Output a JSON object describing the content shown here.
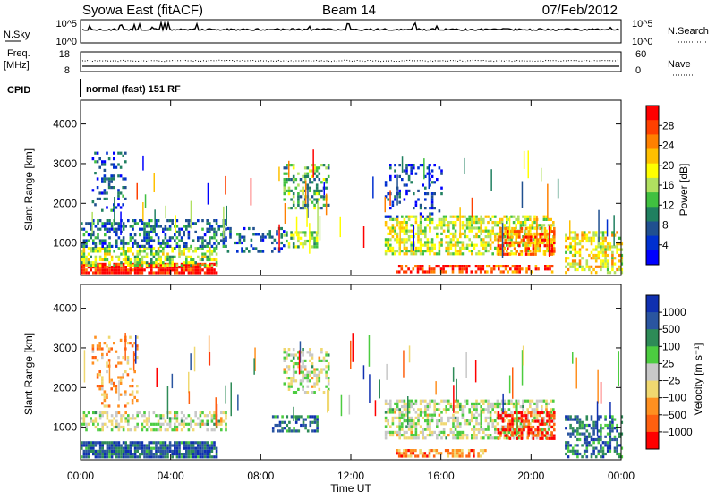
{
  "header": {
    "station": "Syowa East (fitACF)",
    "beam": "Beam 14",
    "date": "07/Feb/2012"
  },
  "top_panels": {
    "nsky_label": "N.Sky",
    "nsky_ticks": [
      "10^5",
      "10^0"
    ],
    "nsearch_label": "N.Search",
    "nsearch_ticks": [
      "10^5",
      "10^0"
    ],
    "freq_label": "Freq.",
    "freq_unit": "[MHz]",
    "freq_ticks": [
      "18",
      "8"
    ],
    "nave_label": "Nave",
    "nave_ticks": [
      "60",
      "0"
    ],
    "cpid_label": "CPID",
    "cpid_text": "normal (fast) 151 RF"
  },
  "chart_data": [
    {
      "type": "heatmap",
      "name": "power",
      "ylabel": "Slant Range [km]",
      "yticks": [
        "1000",
        "2000",
        "3000",
        "4000"
      ],
      "ytick_values": [
        1000,
        2000,
        3000,
        4000
      ],
      "ylim": [
        180,
        4600
      ],
      "xlim": [
        0,
        24
      ],
      "colorbar_label": "Power [dB]",
      "colorbar_ticks": [
        "28",
        "24",
        "20",
        "16",
        "12",
        "8",
        "4"
      ],
      "colorbar_colors": [
        "#ff0000",
        "#ff4000",
        "#ff8000",
        "#ffc000",
        "#ffff00",
        "#b0e060",
        "#40c040",
        "#208060",
        "#205090",
        "#0030d0",
        "#0000ff"
      ],
      "regions": [
        {
          "t0": 0.0,
          "t1": 6.0,
          "r0": 250,
          "r1": 500,
          "level": 0.95,
          "density": 0.85
        },
        {
          "t0": 0.0,
          "t1": 6.0,
          "r0": 400,
          "r1": 900,
          "level": 0.5,
          "density": 0.55
        },
        {
          "t0": 0.0,
          "t1": 6.5,
          "r0": 900,
          "r1": 1600,
          "level": 0.25,
          "density": 0.45
        },
        {
          "t0": 0.5,
          "t1": 2.0,
          "r0": 1800,
          "r1": 3300,
          "level": 0.2,
          "density": 0.25
        },
        {
          "t0": 6.5,
          "t1": 9.0,
          "r0": 800,
          "r1": 1400,
          "level": 0.2,
          "density": 0.3
        },
        {
          "t0": 9.0,
          "t1": 10.5,
          "r0": 900,
          "r1": 1300,
          "level": 0.45,
          "density": 0.6
        },
        {
          "t0": 9.0,
          "t1": 11.0,
          "r0": 1900,
          "r1": 3000,
          "level": 0.4,
          "density": 0.4
        },
        {
          "t0": 14.0,
          "t1": 18.0,
          "r0": 250,
          "r1": 450,
          "level": 0.9,
          "density": 0.6
        },
        {
          "t0": 13.5,
          "t1": 21.0,
          "r0": 700,
          "r1": 1700,
          "level": 0.55,
          "density": 0.55
        },
        {
          "t0": 13.5,
          "t1": 16.0,
          "r0": 1700,
          "r1": 3000,
          "level": 0.15,
          "density": 0.2
        },
        {
          "t0": 18.5,
          "t1": 21.0,
          "r0": 700,
          "r1": 1400,
          "level": 0.8,
          "density": 0.6
        },
        {
          "t0": 18.0,
          "t1": 21.0,
          "r0": 250,
          "r1": 450,
          "level": 0.85,
          "density": 0.55
        },
        {
          "t0": 21.5,
          "t1": 24.0,
          "r0": 250,
          "r1": 1300,
          "level": 0.6,
          "density": 0.5
        }
      ]
    },
    {
      "type": "heatmap",
      "name": "velocity",
      "ylabel": "Slant Range [km]",
      "yticks": [
        "1000",
        "2000",
        "3000",
        "4000"
      ],
      "ytick_values": [
        1000,
        2000,
        3000,
        4000
      ],
      "ylim": [
        180,
        4600
      ],
      "xlim": [
        0,
        24
      ],
      "colorbar_label": "Velocity [m s⁻¹]",
      "colorbar_ticks": [
        "1000",
        "500",
        "100",
        "25",
        "−25",
        "−100",
        "−500",
        "−1000"
      ],
      "colorbar_colors": [
        "#1030b0",
        "#2a55a0",
        "#2e8b57",
        "#4ccc40",
        "#c8c8c8",
        "#f0d870",
        "#ff9020",
        "#ff6010",
        "#ff0000"
      ],
      "regions": [
        {
          "t0": 0.0,
          "t1": 6.0,
          "r0": 250,
          "r1": 650,
          "level": 0.82,
          "density": 0.85
        },
        {
          "t0": 0.0,
          "t1": 6.5,
          "r0": 900,
          "r1": 1400,
          "level": 0.5,
          "density": 0.5
        },
        {
          "t0": 0.5,
          "t1": 2.5,
          "r0": 1500,
          "r1": 3300,
          "level": 0.3,
          "density": 0.2
        },
        {
          "t0": 8.5,
          "t1": 10.5,
          "r0": 900,
          "r1": 1300,
          "level": 0.8,
          "density": 0.55
        },
        {
          "t0": 9.0,
          "t1": 11.0,
          "r0": 1900,
          "r1": 3000,
          "level": 0.5,
          "density": 0.45
        },
        {
          "t0": 14.0,
          "t1": 18.0,
          "r0": 250,
          "r1": 450,
          "level": 0.25,
          "density": 0.6
        },
        {
          "t0": 13.5,
          "t1": 21.0,
          "r0": 700,
          "r1": 1700,
          "level": 0.5,
          "density": 0.55
        },
        {
          "t0": 18.5,
          "t1": 21.0,
          "r0": 700,
          "r1": 1400,
          "level": 0.1,
          "density": 0.55
        },
        {
          "t0": 21.5,
          "t1": 24.0,
          "r0": 250,
          "r1": 1300,
          "level": 0.78,
          "density": 0.5
        }
      ]
    }
  ],
  "time_axis": {
    "label": "Time UT",
    "ticks": [
      "00:00",
      "04:00",
      "08:00",
      "12:00",
      "16:00",
      "20:00",
      "00:00"
    ]
  }
}
